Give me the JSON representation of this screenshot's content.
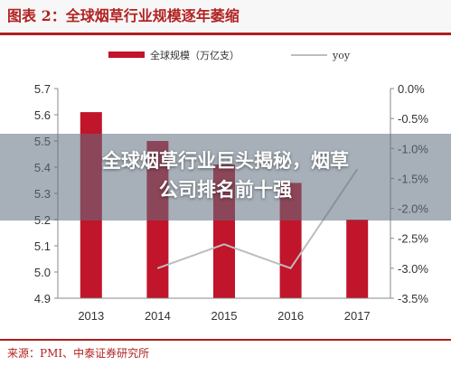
{
  "figure": {
    "title": "图表 2：全球烟草行业规模逐年萎缩",
    "source": "来源：PMI、中泰证券研究所"
  },
  "overlay": {
    "headline_line1": "全球烟草行业巨头揭秘，烟草",
    "headline_line2": "公司排名前十强"
  },
  "colors": {
    "bar": "#c0152a",
    "line": "#bdbdbd",
    "title": "#b22222",
    "overlay": "#5e7080"
  },
  "chart_data": {
    "type": "bar",
    "categories": [
      "2013",
      "2014",
      "2015",
      "2016",
      "2017"
    ],
    "series": [
      {
        "name": "全球规模（万亿支）",
        "type": "bar",
        "axis": "left",
        "values": [
          5.61,
          5.5,
          5.41,
          5.34,
          5.2
        ]
      },
      {
        "name": "yoy",
        "type": "line",
        "axis": "right",
        "values": [
          null,
          -3.0,
          -2.6,
          -3.0,
          -1.35
        ]
      }
    ],
    "y_left": {
      "range": [
        4.9,
        5.7
      ],
      "ticks": [
        "4.9",
        "5.0",
        "5.1",
        "5.2",
        "5.3",
        "5.4",
        "5.5",
        "5.6",
        "5.7"
      ]
    },
    "y_right": {
      "range": [
        -3.5,
        0.0
      ],
      "ticks": [
        "0.0%",
        "-0.5%",
        "-1.0%",
        "-1.5%",
        "-2.0%",
        "-2.5%",
        "-3.0%",
        "-3.5%"
      ]
    },
    "legend": "top",
    "grid": false
  }
}
